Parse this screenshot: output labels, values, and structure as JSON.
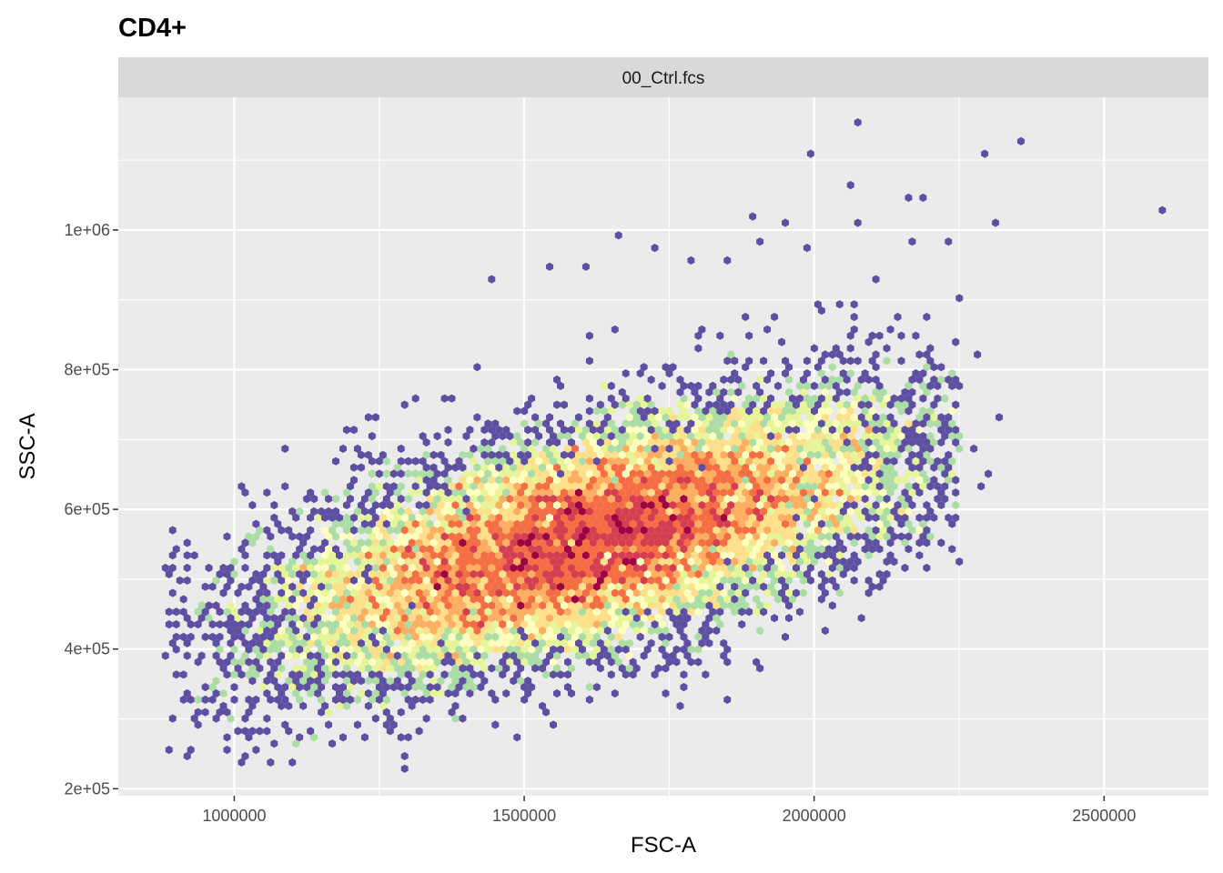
{
  "chart_data": {
    "type": "heatmap",
    "subtype": "hexbin",
    "title": "CD4+",
    "facet_label": "00_Ctrl.fcs",
    "xlabel": "FSC-A",
    "ylabel": "SSC-A",
    "xlim": [
      800000,
      2680000
    ],
    "ylim": [
      190000,
      1190000
    ],
    "x_ticks": [
      1000000,
      1500000,
      2000000,
      2500000
    ],
    "x_tick_labels": [
      "1000000",
      "1500000",
      "2000000",
      "2500000"
    ],
    "y_ticks": [
      200000,
      400000,
      600000,
      800000,
      1000000
    ],
    "y_tick_labels": [
      "2e+05",
      "4e+05",
      "6e+05",
      "8e+05",
      "1e+06"
    ],
    "grid": true,
    "legend": "none",
    "palette": [
      "#5e4fa2",
      "#66c2a5",
      "#abdda4",
      "#e6f598",
      "#ffffbf",
      "#fee08b",
      "#fdae61",
      "#f46d43",
      "#d53e4f",
      "#9e0142"
    ],
    "colors": {
      "panel_background": "#ebebeb",
      "grid": "#ffffff",
      "strip_background": "#d9d9d9"
    },
    "density_core": {
      "center": [
        1620000,
        560000
      ],
      "spread": [
        270000,
        95000
      ],
      "correlation": 0.62
    },
    "outliers": [
      [
        2070000,
        1150000
      ],
      [
        2355000,
        1125000
      ],
      [
        2290000,
        1110000
      ],
      [
        1995000,
        1105000
      ],
      [
        2595000,
        1030000
      ],
      [
        2065000,
        1060000
      ],
      [
        2160000,
        1050000
      ],
      [
        2185000,
        1045000
      ],
      [
        1900000,
        1020000
      ],
      [
        1955000,
        1010000
      ],
      [
        2315000,
        1010000
      ],
      [
        2080000,
        1010000
      ],
      [
        1665000,
        995000
      ],
      [
        2230000,
        980000
      ],
      [
        2170000,
        980000
      ],
      [
        1905000,
        980000
      ],
      [
        1985000,
        970000
      ],
      [
        1730000,
        975000
      ],
      [
        1790000,
        960000
      ],
      [
        1845000,
        960000
      ],
      [
        1540000,
        950000
      ],
      [
        1610000,
        945000
      ],
      [
        2110000,
        930000
      ],
      [
        1450000,
        925000
      ],
      [
        2285000,
        820000
      ],
      [
        2325000,
        735000
      ],
      [
        2270000,
        690000
      ],
      [
        2300000,
        655000
      ],
      [
        2290000,
        630000
      ],
      [
        2235000,
        735000
      ],
      [
        2185000,
        575000
      ],
      [
        2175000,
        625000
      ],
      [
        1060000,
        240000
      ],
      [
        1290000,
        245000
      ],
      [
        1030000,
        270000
      ],
      [
        1140000,
        270000
      ],
      [
        1075000,
        605000
      ],
      [
        1030000,
        605000
      ],
      [
        1090000,
        690000
      ],
      [
        1190000,
        690000
      ],
      [
        1250000,
        730000
      ],
      [
        1315000,
        760000
      ],
      [
        1415000,
        800000
      ],
      [
        1555000,
        790000
      ],
      [
        2245000,
        690000
      ],
      [
        2140000,
        880000
      ],
      [
        2200000,
        875000
      ],
      [
        2070000,
        880000
      ]
    ]
  }
}
